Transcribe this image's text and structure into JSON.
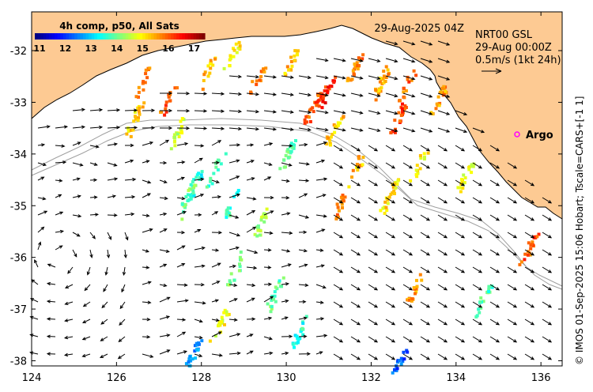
{
  "colorbar": {
    "title": "4h comp, p50, All Sats",
    "ticks": [
      "11",
      "12",
      "13",
      "14",
      "15",
      "16",
      "17"
    ],
    "range": [
      11,
      17.6
    ]
  },
  "date_label": "29-Aug-2025 04Z",
  "current_info": {
    "line1": "NRT00 GSL",
    "line2": "29-Aug 00:00Z",
    "line3": "0.5m/s (1kt 24h)"
  },
  "argo_label": "Argo",
  "credit": "© IMOS 01-Sep-2025 15:06 Hobart; Tscale=CARS+[-1 1]",
  "axes": {
    "x_ticks": [
      "124",
      "126",
      "128",
      "130",
      "132",
      "134",
      "136"
    ],
    "y_ticks": [
      "-32",
      "-33",
      "-34",
      "-35",
      "-36",
      "-37",
      "-38"
    ],
    "xlim": [
      124,
      136.5
    ],
    "ylim": [
      -38.1,
      -31.25
    ]
  },
  "colors": {
    "land": "#fdca93",
    "coast": "#000000",
    "isobath": "#a0a0a0",
    "argo_marker": "#ff00ff"
  },
  "sst_patches": [
    {
      "x": 126.6,
      "y": -32.6,
      "t": 15.8
    },
    {
      "x": 127.2,
      "y": -32.9,
      "t": 16.2
    },
    {
      "x": 128.1,
      "y": -32.4,
      "t": 15.5
    },
    {
      "x": 128.7,
      "y": -32.1,
      "t": 15.2
    },
    {
      "x": 129.3,
      "y": -32.5,
      "t": 15.9
    },
    {
      "x": 130.1,
      "y": -32.2,
      "t": 15.6
    },
    {
      "x": 130.9,
      "y": -32.8,
      "t": 16.6
    },
    {
      "x": 131.6,
      "y": -32.3,
      "t": 16.0
    },
    {
      "x": 132.2,
      "y": -32.6,
      "t": 15.7
    },
    {
      "x": 132.8,
      "y": -32.7,
      "t": 16.1
    },
    {
      "x": 133.6,
      "y": -32.9,
      "t": 15.8
    },
    {
      "x": 130.6,
      "y": -33.1,
      "t": 16.3
    },
    {
      "x": 131.1,
      "y": -33.5,
      "t": 15.5
    },
    {
      "x": 132.6,
      "y": -33.3,
      "t": 16.4
    },
    {
      "x": 126.4,
      "y": -33.3,
      "t": 15.4
    },
    {
      "x": 127.4,
      "y": -33.6,
      "t": 14.8
    },
    {
      "x": 127.8,
      "y": -34.6,
      "t": 13.6
    },
    {
      "x": 128.3,
      "y": -34.3,
      "t": 13.9
    },
    {
      "x": 127.6,
      "y": -34.9,
      "t": 14.2
    },
    {
      "x": 128.7,
      "y": -34.9,
      "t": 13.8
    },
    {
      "x": 129.4,
      "y": -35.3,
      "t": 14.5
    },
    {
      "x": 130.0,
      "y": -34.0,
      "t": 14.0
    },
    {
      "x": 131.6,
      "y": -34.3,
      "t": 15.6
    },
    {
      "x": 132.4,
      "y": -34.8,
      "t": 15.3
    },
    {
      "x": 131.2,
      "y": -35.0,
      "t": 15.9
    },
    {
      "x": 133.1,
      "y": -34.2,
      "t": 15.2
    },
    {
      "x": 134.2,
      "y": -34.4,
      "t": 15.0
    },
    {
      "x": 128.8,
      "y": -36.2,
      "t": 14.3
    },
    {
      "x": 129.7,
      "y": -36.7,
      "t": 14.1
    },
    {
      "x": 130.3,
      "y": -37.4,
      "t": 13.7
    },
    {
      "x": 133.0,
      "y": -36.6,
      "t": 15.8
    },
    {
      "x": 134.6,
      "y": -36.8,
      "t": 13.9
    },
    {
      "x": 135.7,
      "y": -35.8,
      "t": 16.2
    },
    {
      "x": 132.7,
      "y": -37.9,
      "t": 12.4
    },
    {
      "x": 127.8,
      "y": -37.8,
      "t": 12.8
    },
    {
      "x": 128.4,
      "y": -37.3,
      "t": 15.1
    }
  ]
}
